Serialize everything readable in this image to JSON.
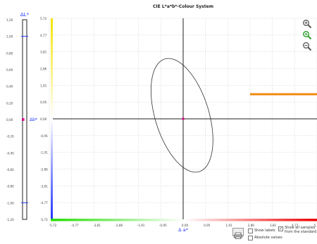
{
  "chart_title": "CIE L*a*b*-Colour System",
  "left_scale": {
    "label_top": "ΔL*",
    "label_mid": "Δb*",
    "ticks": [
      "1,20",
      "1,00",
      "0,80",
      "0,60",
      "0,40",
      "0,20",
      "0,00",
      "-0,20",
      "-0,40",
      "-0,60",
      "-0,80",
      "-1,00",
      "-1,20"
    ],
    "marker_value": 0.0,
    "upper_blue_line": 1.0,
    "lower_blue_line": -1.0
  },
  "main_chart": {
    "y_ticks": [
      "5,72",
      "4,77",
      "3,81",
      "2,86",
      "1,91",
      "0,95",
      "0,00",
      "-0,95",
      "-1,91",
      "-2,86",
      "-3,81",
      "-4,77",
      "-5,72"
    ],
    "x_ticks": [
      "-5,72",
      "-4,77",
      "-3,81",
      "-2,86",
      "-1,91",
      "-0,95",
      "0,00",
      "0,95",
      "1,91",
      "2,86",
      "3,81",
      "4,77",
      "5,72"
    ],
    "x_label": "Δ a*",
    "ellipse": {
      "cx": -0.05,
      "cy": 0.2,
      "rx": 1.15,
      "ry": 3.35,
      "rotation_deg": -17
    },
    "orange_line": {
      "y": 1.4,
      "x_start": 2.86,
      "x_end": 5.72
    },
    "colors": {
      "yellow": "#f5e400",
      "blue": "#2233ff",
      "green": "#22dd00",
      "red": "#ee0000",
      "orange": "#f08a10",
      "magenta": "#e0008a"
    }
  },
  "zoom_buttons": [
    {
      "name": "zoom-in-icon",
      "color": "#555555"
    },
    {
      "name": "zoom-reset-icon",
      "color": "#2a9a2a"
    },
    {
      "name": "zoom-out-icon",
      "color": "#555555"
    }
  ],
  "controls": {
    "show_labels": "Show labels",
    "absolute_values": "Absolute values",
    "show_all_samples": "Show all samples from the standard",
    "show_labels_checked": false,
    "absolute_values_checked": false,
    "show_all_samples_checked": true
  }
}
